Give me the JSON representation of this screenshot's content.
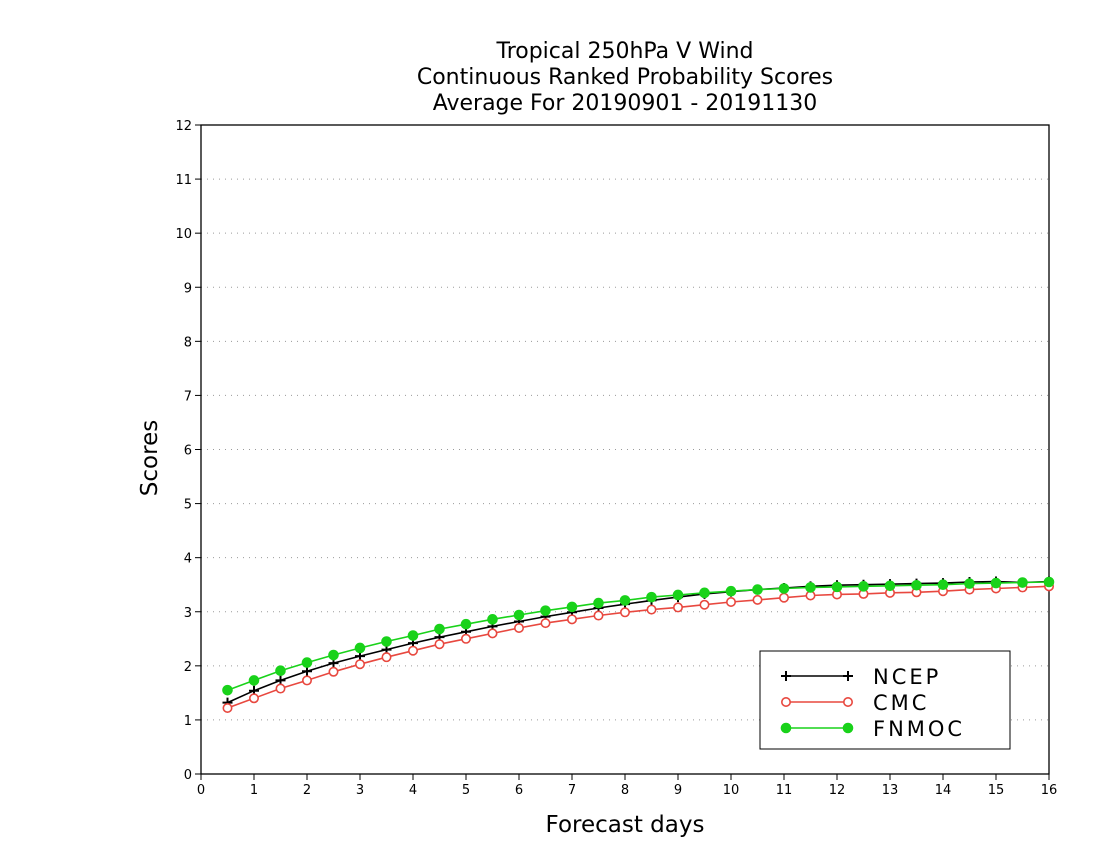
{
  "chart_data": {
    "type": "line",
    "title": [
      "Tropical 250hPa V Wind",
      "Continuous Ranked Probability Scores",
      "Average For 20190901 - 20191130"
    ],
    "xlabel": "Forecast days",
    "ylabel": "Scores",
    "xlim": [
      0,
      16
    ],
    "ylim": [
      0,
      12
    ],
    "xticks": [
      "0",
      "1",
      "2",
      "3",
      "4",
      "5",
      "6",
      "7",
      "8",
      "9",
      "10",
      "11",
      "12",
      "13",
      "14",
      "15",
      "16"
    ],
    "yticks": [
      "0",
      "1",
      "2",
      "3",
      "4",
      "5",
      "6",
      "7",
      "8",
      "9",
      "10",
      "11",
      "12"
    ],
    "grid": "horizontal-dotted",
    "legend_position": "bottom-right",
    "x": [
      0.5,
      1.0,
      1.5,
      2.0,
      2.5,
      3.0,
      3.5,
      4.0,
      4.5,
      5.0,
      5.5,
      6.0,
      6.5,
      7.0,
      7.5,
      8.0,
      8.5,
      9.0,
      9.5,
      10.0,
      10.5,
      11.0,
      11.5,
      12.0,
      12.5,
      13.0,
      13.5,
      14.0,
      14.5,
      15.0,
      15.5,
      16.0
    ],
    "series": [
      {
        "name": "NCEP",
        "color": "#000000",
        "marker": "plus",
        "values": [
          1.32,
          1.54,
          1.73,
          1.9,
          2.05,
          2.18,
          2.3,
          2.42,
          2.53,
          2.63,
          2.73,
          2.82,
          2.91,
          2.99,
          3.07,
          3.14,
          3.21,
          3.27,
          3.33,
          3.37,
          3.41,
          3.44,
          3.47,
          3.49,
          3.5,
          3.51,
          3.52,
          3.53,
          3.55,
          3.56,
          3.54,
          3.56
        ]
      },
      {
        "name": "CMC",
        "color": "#e8483f",
        "marker": "open-circle",
        "values": [
          1.22,
          1.4,
          1.58,
          1.73,
          1.89,
          2.03,
          2.16,
          2.28,
          2.4,
          2.5,
          2.6,
          2.7,
          2.79,
          2.86,
          2.93,
          2.99,
          3.04,
          3.08,
          3.13,
          3.18,
          3.22,
          3.26,
          3.3,
          3.32,
          3.33,
          3.35,
          3.36,
          3.38,
          3.41,
          3.43,
          3.45,
          3.47
        ]
      },
      {
        "name": "FNMOC",
        "color": "#19d21a",
        "marker": "filled-circle",
        "values": [
          1.55,
          1.73,
          1.91,
          2.06,
          2.2,
          2.33,
          2.45,
          2.56,
          2.68,
          2.77,
          2.86,
          2.94,
          3.02,
          3.09,
          3.16,
          3.21,
          3.27,
          3.31,
          3.35,
          3.38,
          3.41,
          3.43,
          3.45,
          3.46,
          3.47,
          3.48,
          3.49,
          3.5,
          3.52,
          3.53,
          3.54,
          3.55
        ]
      }
    ]
  }
}
